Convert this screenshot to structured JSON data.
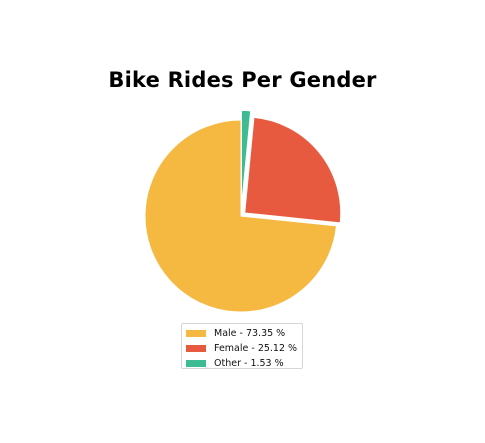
{
  "chart_data": {
    "type": "pie",
    "title": "Bike Rides Per Gender",
    "slices": [
      {
        "label": "Male",
        "value": 73.35,
        "color": "#f5b942",
        "explode": 0.0
      },
      {
        "label": "Female",
        "value": 25.12,
        "color": "#e85a3f",
        "explode": 0.05
      },
      {
        "label": "Other",
        "value": 1.53,
        "color": "#3dbb93",
        "explode": 0.1
      }
    ],
    "legend": {
      "position": "bottom",
      "entries": [
        "Male - 73.35 %",
        "Female - 25.12 %",
        "Other - 1.53 %"
      ]
    }
  }
}
